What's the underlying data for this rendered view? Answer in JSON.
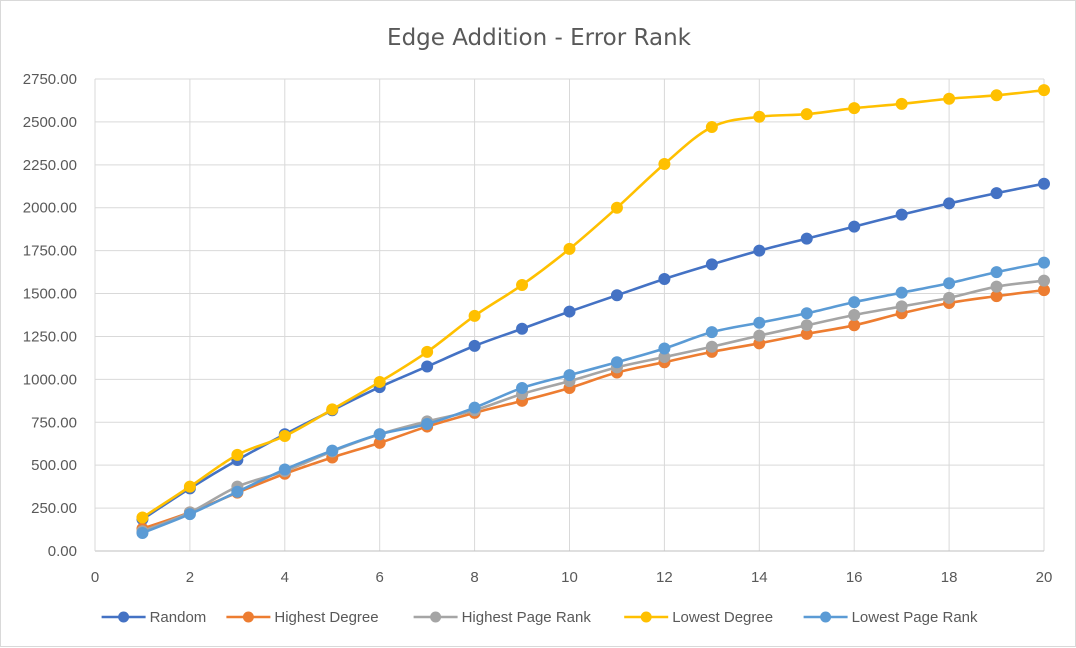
{
  "chart_data": {
    "type": "line",
    "title": "Edge Addition - Error Rank",
    "xlabel": "",
    "ylabel": "",
    "xlim": [
      0,
      20
    ],
    "ylim": [
      0,
      2750
    ],
    "x_ticks": [
      "0",
      "2",
      "4",
      "6",
      "8",
      "10",
      "12",
      "14",
      "16",
      "18",
      "20"
    ],
    "y_ticks": [
      "0.00",
      "250.00",
      "500.00",
      "750.00",
      "1000.00",
      "1250.00",
      "1500.00",
      "1750.00",
      "2000.00",
      "2250.00",
      "2500.00",
      "2750.00"
    ],
    "grid": true,
    "legend_position": "bottom",
    "x": [
      1,
      2,
      3,
      4,
      5,
      6,
      7,
      8,
      9,
      10,
      11,
      12,
      13,
      14,
      15,
      16,
      17,
      18,
      19,
      20
    ],
    "series": [
      {
        "name": "Random",
        "color": "#4472C4",
        "values": [
          185,
          365,
          530,
          680,
          820,
          955,
          1075,
          1195,
          1295,
          1395,
          1490,
          1585,
          1670,
          1750,
          1820,
          1890,
          1960,
          2025,
          2085,
          2140
        ]
      },
      {
        "name": "Highest Degree",
        "color": "#ED7D31",
        "values": [
          130,
          225,
          340,
          450,
          545,
          630,
          725,
          805,
          875,
          950,
          1040,
          1100,
          1160,
          1210,
          1265,
          1315,
          1385,
          1445,
          1485,
          1520
        ]
      },
      {
        "name": "Highest Page Rank",
        "color": "#A5A5A5",
        "values": [
          115,
          225,
          375,
          465,
          580,
          680,
          755,
          820,
          915,
          990,
          1070,
          1130,
          1190,
          1255,
          1315,
          1375,
          1425,
          1475,
          1540,
          1575
        ]
      },
      {
        "name": "Lowest Degree",
        "color": "#FFC000",
        "values": [
          195,
          375,
          560,
          670,
          825,
          985,
          1160,
          1370,
          1550,
          1760,
          2000,
          2255,
          2470,
          2530,
          2545,
          2580,
          2605,
          2635,
          2655,
          2685
        ]
      },
      {
        "name": "Lowest Page Rank",
        "color": "#5B9BD5",
        "values": [
          105,
          215,
          345,
          475,
          585,
          680,
          740,
          835,
          950,
          1025,
          1100,
          1180,
          1275,
          1330,
          1385,
          1450,
          1505,
          1560,
          1625,
          1680
        ]
      }
    ]
  }
}
